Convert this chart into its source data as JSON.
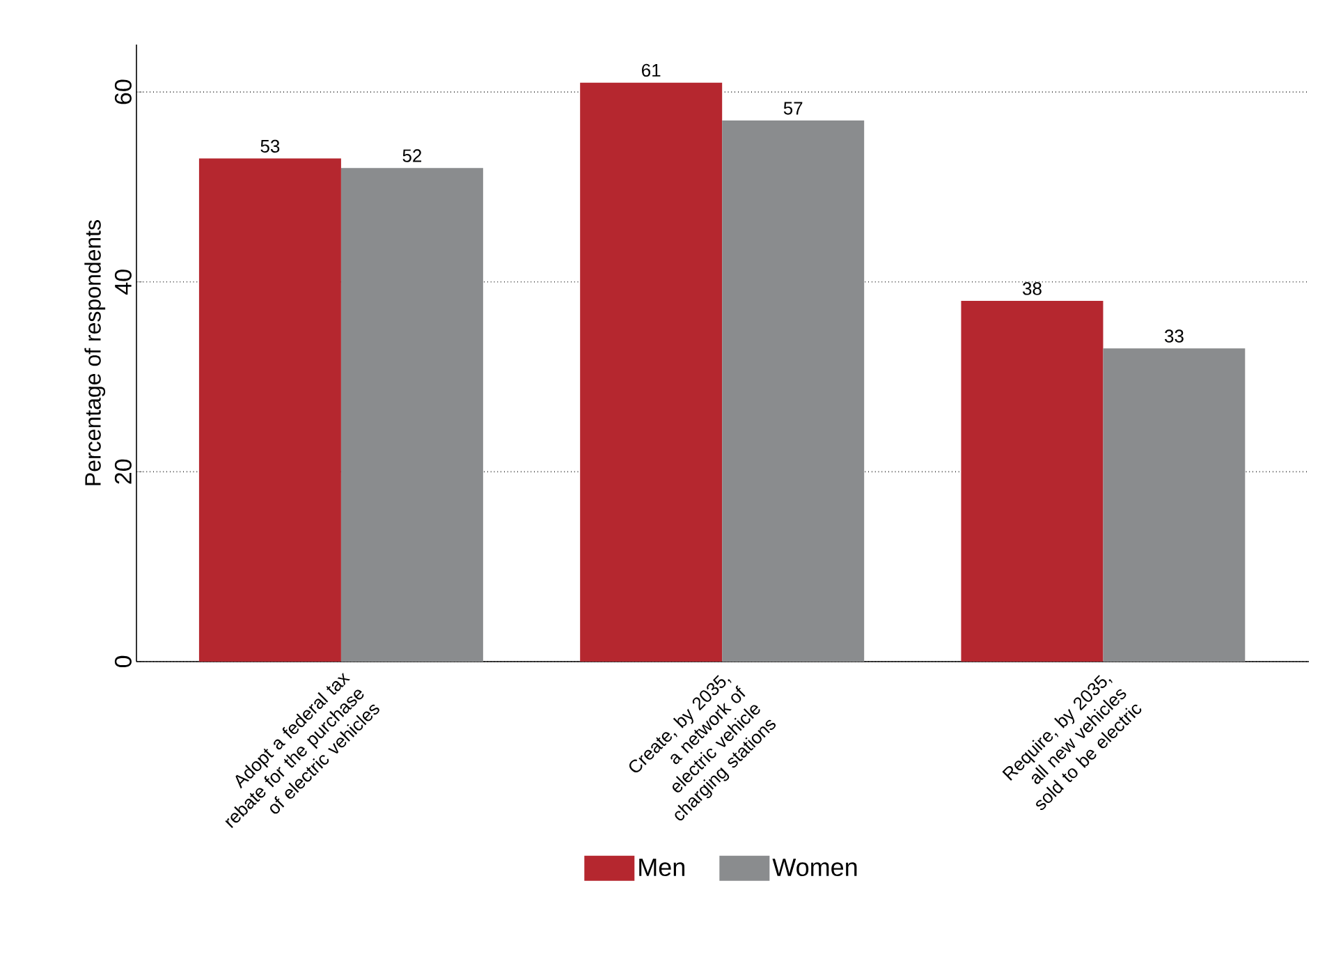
{
  "chart_data": {
    "type": "bar",
    "ylabel": "Percentage of respondents",
    "categories": [
      "Adopt a federal tax rebate for the purchase of electric vehicles",
      "Create, by 2035, a network of electric vehicle charging stations",
      "Require, by 2035, all new vehicles sold to be electric"
    ],
    "series": [
      {
        "name": "Men",
        "color": "#b5272f",
        "values": [
          53,
          61,
          38
        ]
      },
      {
        "name": "Women",
        "color": "#8a8c8e",
        "values": [
          52,
          57,
          33
        ]
      }
    ],
    "ylim": [
      0,
      65
    ],
    "yticks": [
      0,
      20,
      40,
      60
    ],
    "grid": "y",
    "legend": "bottom",
    "data_labels": true
  }
}
